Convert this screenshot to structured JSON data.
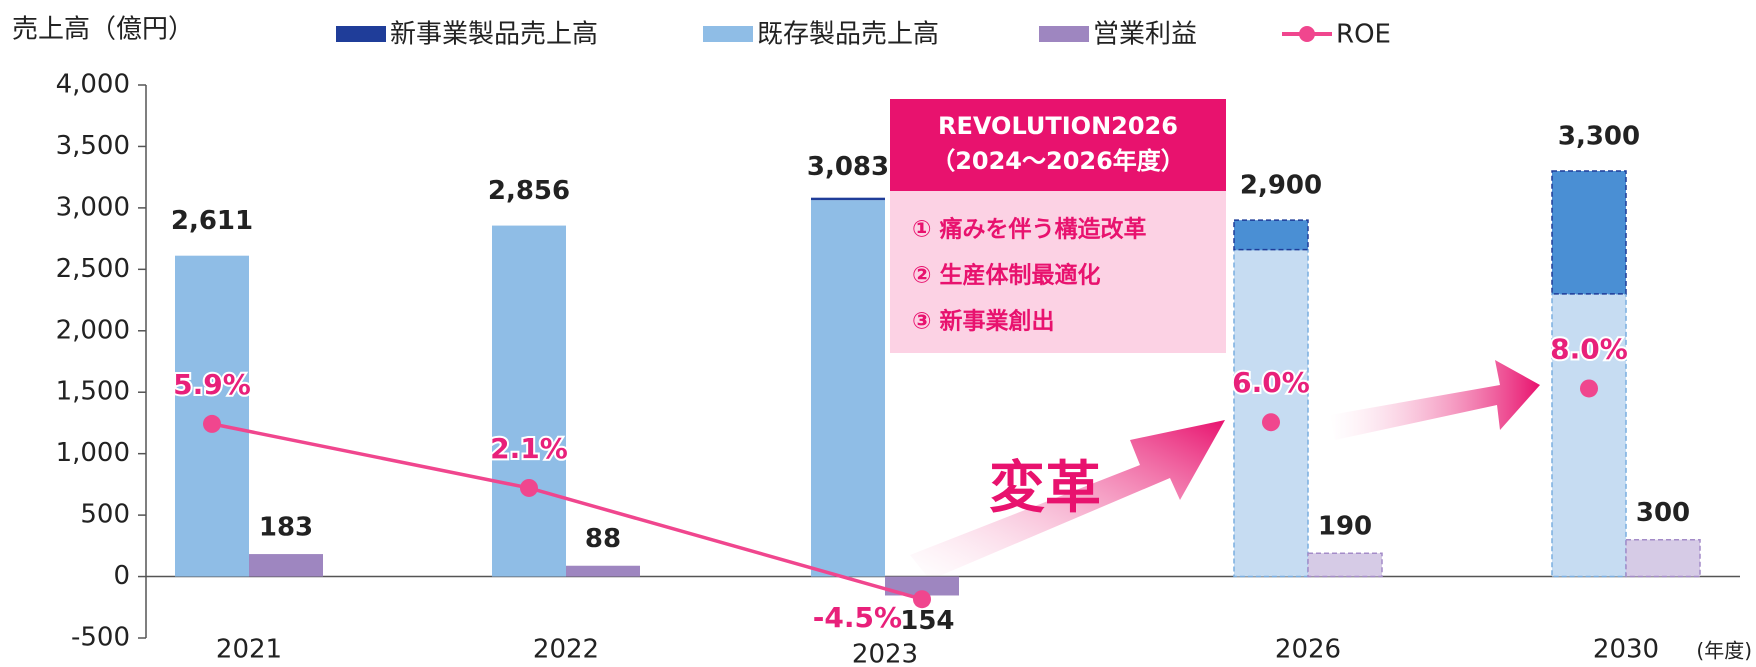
{
  "chart_data": {
    "type": "bar",
    "y_label": "売上高（億円）",
    "x_unit": "(年度)",
    "categories": [
      "2021",
      "2022",
      "2023",
      "2026",
      "2030"
    ],
    "projected": [
      false,
      false,
      false,
      true,
      true
    ],
    "series": [
      {
        "name": "新事業製品売上高",
        "color": "#1f3d99",
        "projected_color": "#4a8fd4",
        "stack": "sales",
        "values": [
          0,
          0,
          20,
          240,
          1000
        ]
      },
      {
        "name": "既存製品売上高",
        "color": "#8fbde6",
        "projected_color": "#c6dcf2",
        "stack": "sales",
        "values": [
          2611,
          2856,
          3063,
          2660,
          2300
        ]
      },
      {
        "name": "営業利益",
        "color": "#9e86c0",
        "projected_color": "#d6cbe6",
        "stack": "profit",
        "values": [
          183,
          88,
          -154,
          190,
          300
        ]
      },
      {
        "name": "ROE",
        "color": "#f0468e",
        "type": "line",
        "axis": "y2",
        "values": [
          5.9,
          2.1,
          -4.5,
          6.0,
          8.0
        ],
        "value_labels": [
          "5.9%",
          "2.1%",
          "-4.5%",
          "6.0%",
          "8.0%"
        ]
      }
    ],
    "totals": [
      2611,
      2856,
      3083,
      2900,
      3300
    ],
    "total_labels": [
      "2,611",
      "2,856",
      "3,083",
      "2,900",
      "3,300"
    ],
    "ylim": [
      -500,
      4000
    ],
    "yticks": [
      {
        "value": -500,
        "label": "-500"
      },
      0,
      500,
      {
        "value": 1000,
        "label": "1,000"
      },
      {
        "value": 1500,
        "label": "1,500"
      },
      {
        "value": 2000,
        "label": "2,000"
      },
      {
        "value": 2500,
        "label": "2,500"
      },
      {
        "value": 3000,
        "label": "3,000"
      },
      {
        "value": 3500,
        "label": "3,500"
      },
      {
        "value": 4000,
        "label": "4,000"
      }
    ],
    "y2lim": [
      -6.8,
      26
    ],
    "annotations": {
      "box_title": "REVOLUTION2026",
      "box_subtitle": "（2024～2026年度）",
      "box_items": [
        "① 痛みを伴う構造改革",
        "② 生産体制最適化",
        "③ 新事業創出"
      ],
      "arrow_label": "変革"
    }
  }
}
